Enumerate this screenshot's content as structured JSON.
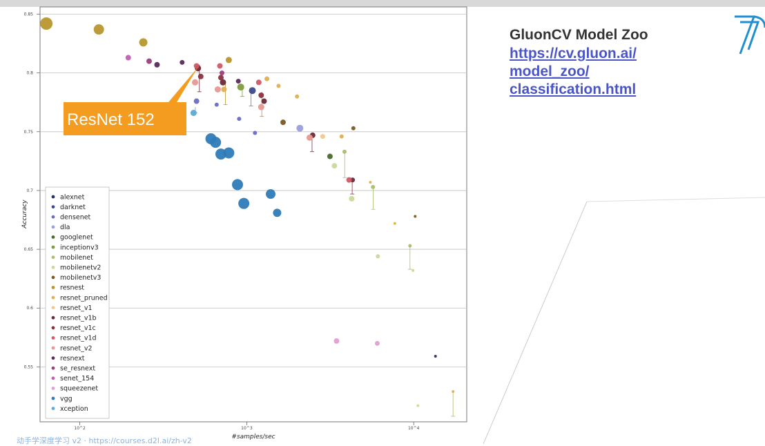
{
  "slide": {
    "heading": "GluonCV Model Zoo",
    "link": "https://cv.gluon.ai/model_zoo/classification.html",
    "link_lines": [
      "https://cv.gluon.ai/",
      "model_zoo/",
      "classification.html"
    ],
    "footer": "动手学深度学习 v2 · https://courses.d2l.ai/zh-v2",
    "colors": {
      "link": "#4a55c9",
      "callout": "#f39c1f",
      "logo": "#1f8fd0"
    },
    "logo_icon": "d2l-logo-icon"
  },
  "chart_data": {
    "type": "scatter",
    "xlabel": "#samples/sec",
    "ylabel": "Accuracy",
    "x_scale": "log",
    "xlim": [
      60,
      20000
    ],
    "ylim": [
      0.505,
      0.855
    ],
    "x_ticks": [
      100,
      1000,
      10000
    ],
    "x_tick_labels": [
      "10^2",
      "10^3",
      "10^4"
    ],
    "y_ticks": [
      0.55,
      0.6,
      0.65,
      0.7,
      0.75,
      0.8,
      0.85
    ],
    "y_tick_labels": [
      "0.55",
      "0.6",
      "0.65",
      "0.7",
      "0.75",
      "0.8",
      "0.85"
    ],
    "grid": true,
    "legend_placement": "bottom-left",
    "annotation": {
      "text": "ResNet 152",
      "x": 510,
      "y": 0.791
    },
    "series": [
      {
        "name": "alexnet",
        "color": "#2b2f6b",
        "points": [
          [
            13500,
            0.559,
            2
          ]
        ]
      },
      {
        "name": "darknet",
        "color": "#3c4a8f",
        "points": [
          [
            1080,
            0.785,
            5
          ]
        ]
      },
      {
        "name": "densenet",
        "color": "#6a6dc4",
        "points": [
          [
            500,
            0.776,
            4
          ],
          [
            660,
            0.773,
            3
          ],
          [
            900,
            0.761,
            3
          ],
          [
            1120,
            0.749,
            3
          ]
        ]
      },
      {
        "name": "dla",
        "color": "#9b9fdc",
        "points": [
          [
            2080,
            0.753,
            5
          ]
        ]
      },
      {
        "name": "googlenet",
        "color": "#4a6a2a",
        "points": [
          [
            3150,
            0.729,
            4
          ]
        ]
      },
      {
        "name": "inceptionv3",
        "color": "#7f9a3e",
        "points": [
          [
            920,
            0.788,
            5
          ]
        ]
      },
      {
        "name": "mobilenet",
        "color": "#a9be6b",
        "points": [
          [
            3850,
            0.733,
            3
          ],
          [
            5700,
            0.703,
            3
          ],
          [
            9500,
            0.653,
            2.5
          ]
        ]
      },
      {
        "name": "mobilenetv2",
        "color": "#c9d99a",
        "points": [
          [
            3350,
            0.721,
            4
          ],
          [
            4250,
            0.693,
            4
          ],
          [
            6100,
            0.644,
            3
          ],
          [
            9900,
            0.632,
            2
          ],
          [
            10600,
            0.517,
            2
          ]
        ]
      },
      {
        "name": "mobilenetv3",
        "color": "#7a5a22",
        "points": [
          [
            1650,
            0.758,
            4
          ],
          [
            4350,
            0.753,
            3
          ],
          [
            10200,
            0.678,
            2
          ]
        ]
      },
      {
        "name": "resnest",
        "color": "#b8962e",
        "points": [
          [
            63,
            0.842,
            9
          ],
          [
            130,
            0.837,
            7.5
          ],
          [
            240,
            0.826,
            6
          ],
          [
            780,
            0.811,
            4.5
          ]
        ]
      },
      {
        "name": "resnet_pruned",
        "color": "#e0b050",
        "points": [
          [
            730,
            0.786,
            4
          ],
          [
            1320,
            0.795,
            3.5
          ],
          [
            1550,
            0.789,
            3
          ],
          [
            2000,
            0.78,
            3
          ],
          [
            3700,
            0.746,
            3
          ],
          [
            5500,
            0.707,
            2
          ],
          [
            7700,
            0.672,
            2
          ],
          [
            17200,
            0.529,
            2
          ]
        ]
      },
      {
        "name": "resnet_v1",
        "color": "#f0c890",
        "points": [
          [
            2850,
            0.746,
            3.5
          ]
        ]
      },
      {
        "name": "resnet_v1b",
        "color": "#6b2a36",
        "points": [
          [
            510,
            0.804,
            4.5
          ],
          [
            720,
            0.792,
            4.5
          ],
          [
            1270,
            0.776,
            4
          ],
          [
            2480,
            0.747,
            4
          ],
          [
            4300,
            0.709,
            3.5
          ]
        ]
      },
      {
        "name": "resnet_v1c",
        "color": "#8c3040",
        "points": [
          [
            530,
            0.797,
            4
          ],
          [
            700,
            0.796,
            4
          ],
          [
            1220,
            0.781,
            4
          ]
        ]
      },
      {
        "name": "resnet_v1d",
        "color": "#d05868",
        "points": [
          [
            500,
            0.806,
            4
          ],
          [
            690,
            0.806,
            4
          ],
          [
            1180,
            0.792,
            4
          ],
          [
            4100,
            0.709,
            4
          ]
        ]
      },
      {
        "name": "resnet_v2",
        "color": "#e89890",
        "points": [
          [
            490,
            0.792,
            4.5
          ],
          [
            670,
            0.786,
            4.5
          ],
          [
            1220,
            0.771,
            4.5
          ],
          [
            2380,
            0.745,
            4.5
          ]
        ]
      },
      {
        "name": "resnext",
        "color": "#5a2a5a",
        "points": [
          [
            290,
            0.807,
            4
          ],
          [
            410,
            0.809,
            3.5
          ],
          [
            890,
            0.793,
            3.5
          ]
        ]
      },
      {
        "name": "se_resnext",
        "color": "#9a3f7a",
        "points": [
          [
            260,
            0.81,
            4
          ],
          [
            710,
            0.8,
            3.5
          ]
        ]
      },
      {
        "name": "senet_154",
        "color": "#c060b0",
        "points": [
          [
            195,
            0.813,
            4
          ]
        ]
      },
      {
        "name": "squeezenet",
        "color": "#e0a0d0",
        "points": [
          [
            3450,
            0.572,
            4
          ],
          [
            6050,
            0.57,
            3.5
          ]
        ]
      },
      {
        "name": "vgg",
        "color": "#2f7bb8",
        "points": [
          [
            610,
            0.744,
            8
          ],
          [
            650,
            0.741,
            8
          ],
          [
            700,
            0.731,
            8
          ],
          [
            780,
            0.732,
            8
          ],
          [
            880,
            0.705,
            8
          ],
          [
            960,
            0.689,
            8
          ],
          [
            1390,
            0.697,
            7
          ],
          [
            1520,
            0.681,
            6
          ]
        ]
      },
      {
        "name": "xception",
        "color": "#5fa9d6",
        "points": [
          [
            480,
            0.766,
            4.5
          ]
        ]
      }
    ]
  }
}
